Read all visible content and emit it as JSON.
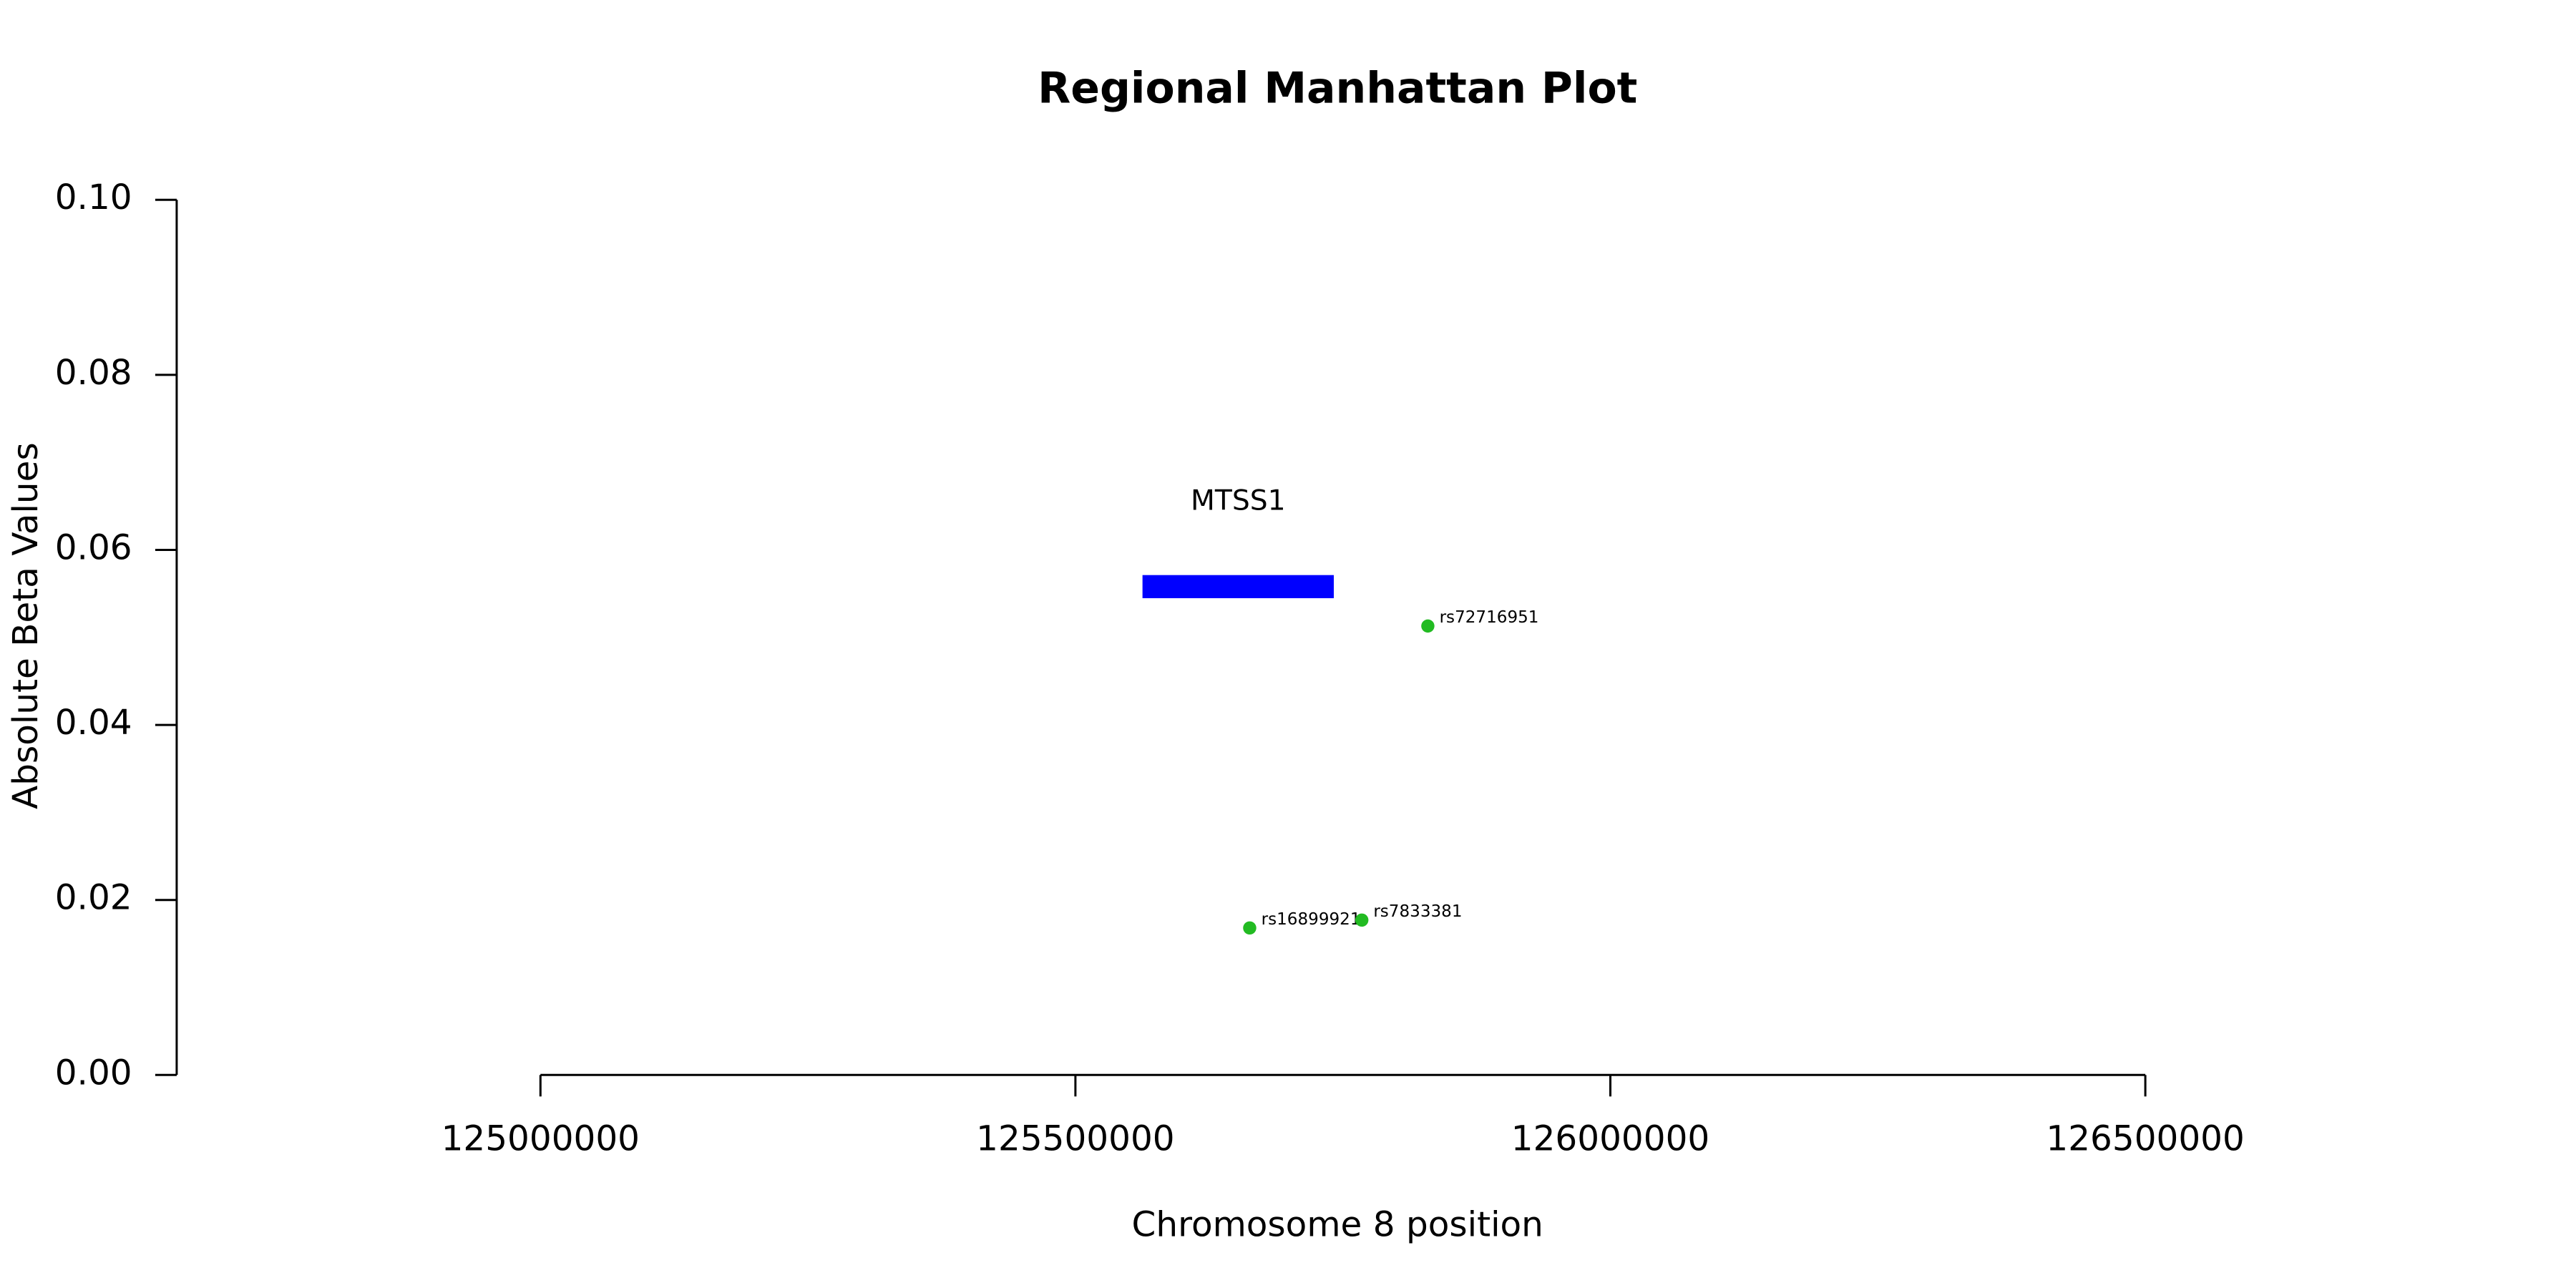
{
  "chart_data": {
    "type": "scatter",
    "title": "Regional Manhattan Plot",
    "x_label": "Chromosome 8 position",
    "y_label": "Absolute Beta Values",
    "xlim": [
      124660000,
      126830000
    ],
    "ylim": [
      0,
      0.1
    ],
    "xticks": [
      125000000,
      125500000,
      126000000,
      126500000
    ],
    "yticks": [
      {
        "value": 0,
        "label": "0.00"
      },
      0.02,
      0.04,
      0.06,
      0.08,
      {
        "value": 0.1,
        "label": "0.10"
      }
    ],
    "series": [
      {
        "color": "#22bb22",
        "x": [
          125829400,
          125662900,
          125767700
        ],
        "values": [
          0.0513,
          0.0168,
          0.0177
        ],
        "labels": [
          "rs72716951",
          "rs16899921",
          "rs7833381"
        ]
      }
    ],
    "genes": [
      {
        "name": "MTSS1",
        "start": 125562700,
        "end": 125741500,
        "y": 0.0558,
        "color": "#0000ff"
      }
    ]
  }
}
